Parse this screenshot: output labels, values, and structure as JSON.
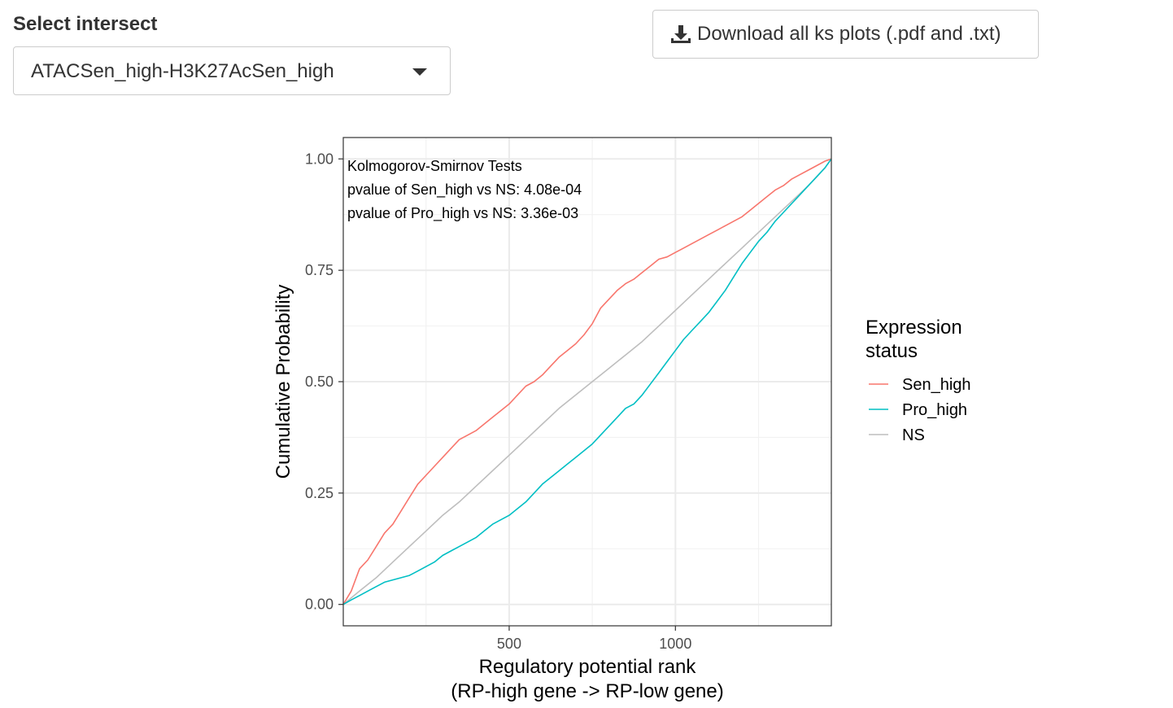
{
  "select_intersect": {
    "label": "Select intersect",
    "value": "ATACSen_high-H3K27AcSen_high"
  },
  "download_button": {
    "label": "Download all ks plots (.pdf and .txt)",
    "icon": "download-icon"
  },
  "annotation": {
    "line1": "Kolmogorov-Smirnov Tests",
    "line2": "pvalue of Sen_high vs NS: 4.08e-04",
    "line3": "pvalue of Pro_high vs NS: 3.36e-03"
  },
  "legend": {
    "title_line1": "Expression",
    "title_line2": "status"
  },
  "chart_data": {
    "type": "line",
    "xlabel_line1": "Regulatory potential rank",
    "xlabel_line2": "(RP-high gene -> RP-low gene)",
    "ylabel": "Cumulative Probability",
    "xlim": [
      1,
      1469
    ],
    "ylim": [
      -0.048,
      1.048
    ],
    "x_ticks": [
      {
        "value": 500,
        "label": "500"
      },
      {
        "value": 1000,
        "label": "1000"
      }
    ],
    "y_ticks": [
      {
        "value": 0.0,
        "label": "0.00"
      },
      {
        "value": 0.25,
        "label": "0.25"
      },
      {
        "value": 0.5,
        "label": "0.50"
      },
      {
        "value": 0.75,
        "label": "0.75"
      },
      {
        "value": 1.0,
        "label": "1.00"
      }
    ],
    "grid": true,
    "legend_position": "right",
    "series": [
      {
        "name": "Sen_high",
        "color": "#f8766d",
        "x": [
          1,
          25,
          50,
          75,
          100,
          125,
          150,
          175,
          200,
          225,
          250,
          275,
          300,
          325,
          350,
          375,
          400,
          425,
          450,
          475,
          500,
          525,
          550,
          575,
          600,
          625,
          650,
          675,
          700,
          725,
          750,
          775,
          800,
          825,
          850,
          875,
          900,
          925,
          950,
          975,
          1000,
          1025,
          1050,
          1075,
          1100,
          1125,
          1150,
          1175,
          1200,
          1225,
          1250,
          1275,
          1300,
          1325,
          1350,
          1375,
          1400,
          1425,
          1450,
          1469
        ],
        "y": [
          0.0,
          0.03,
          0.08,
          0.1,
          0.13,
          0.16,
          0.18,
          0.21,
          0.24,
          0.27,
          0.29,
          0.31,
          0.33,
          0.35,
          0.37,
          0.38,
          0.39,
          0.405,
          0.42,
          0.435,
          0.45,
          0.47,
          0.49,
          0.5,
          0.515,
          0.535,
          0.555,
          0.57,
          0.585,
          0.605,
          0.63,
          0.665,
          0.685,
          0.705,
          0.72,
          0.73,
          0.745,
          0.76,
          0.775,
          0.78,
          0.79,
          0.8,
          0.81,
          0.82,
          0.83,
          0.84,
          0.85,
          0.86,
          0.87,
          0.885,
          0.9,
          0.915,
          0.93,
          0.94,
          0.955,
          0.965,
          0.975,
          0.985,
          0.995,
          1.0
        ]
      },
      {
        "name": "Pro_high",
        "color": "#00bfc4",
        "x": [
          1,
          25,
          50,
          75,
          100,
          125,
          150,
          175,
          200,
          225,
          250,
          275,
          300,
          325,
          350,
          375,
          400,
          425,
          450,
          475,
          500,
          525,
          550,
          575,
          600,
          625,
          650,
          675,
          700,
          725,
          750,
          775,
          800,
          825,
          850,
          875,
          900,
          925,
          950,
          975,
          1000,
          1025,
          1050,
          1075,
          1100,
          1125,
          1150,
          1175,
          1200,
          1225,
          1250,
          1275,
          1300,
          1325,
          1350,
          1375,
          1400,
          1425,
          1450,
          1469
        ],
        "y": [
          0.0,
          0.01,
          0.02,
          0.03,
          0.04,
          0.05,
          0.055,
          0.06,
          0.065,
          0.075,
          0.085,
          0.095,
          0.11,
          0.12,
          0.13,
          0.14,
          0.15,
          0.165,
          0.18,
          0.19,
          0.2,
          0.215,
          0.23,
          0.25,
          0.27,
          0.285,
          0.3,
          0.315,
          0.33,
          0.345,
          0.36,
          0.38,
          0.4,
          0.42,
          0.44,
          0.45,
          0.47,
          0.495,
          0.52,
          0.545,
          0.57,
          0.595,
          0.615,
          0.635,
          0.655,
          0.68,
          0.705,
          0.735,
          0.765,
          0.79,
          0.815,
          0.835,
          0.86,
          0.88,
          0.9,
          0.92,
          0.94,
          0.96,
          0.98,
          1.0
        ]
      },
      {
        "name": "NS",
        "color": "#bebebe",
        "x": [
          1,
          50,
          100,
          150,
          200,
          250,
          300,
          350,
          400,
          450,
          500,
          550,
          600,
          650,
          700,
          750,
          800,
          850,
          900,
          950,
          1000,
          1050,
          1100,
          1150,
          1200,
          1250,
          1300,
          1350,
          1400,
          1450,
          1469
        ],
        "y": [
          0.0,
          0.03,
          0.06,
          0.095,
          0.13,
          0.165,
          0.2,
          0.23,
          0.265,
          0.3,
          0.335,
          0.37,
          0.405,
          0.44,
          0.47,
          0.5,
          0.53,
          0.56,
          0.59,
          0.625,
          0.66,
          0.695,
          0.73,
          0.765,
          0.8,
          0.835,
          0.87,
          0.905,
          0.94,
          0.98,
          1.0
        ]
      }
    ]
  }
}
